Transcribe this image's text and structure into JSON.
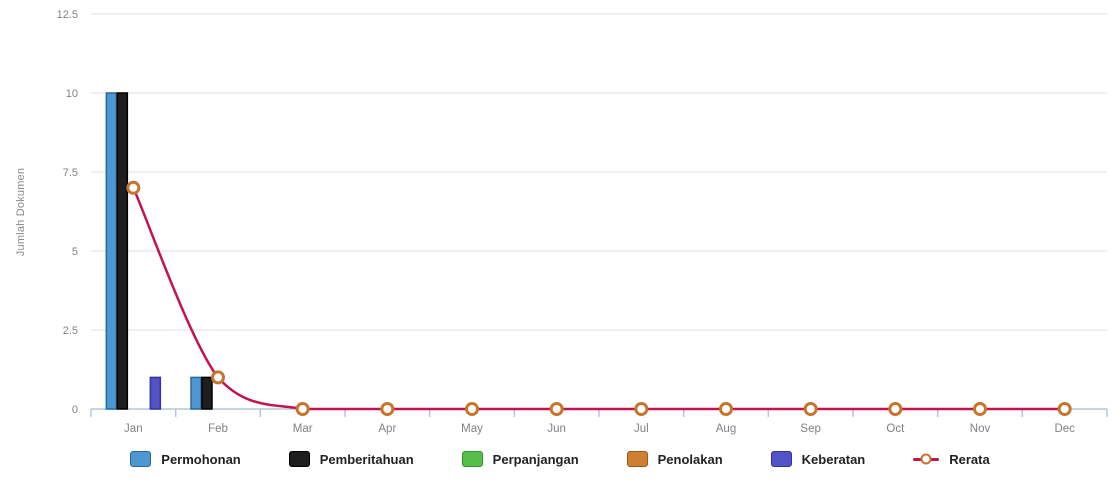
{
  "chart_data": {
    "type": "bar",
    "title": "",
    "categories": [
      "Jan",
      "Feb",
      "Mar",
      "Apr",
      "May",
      "Jun",
      "Jul",
      "Aug",
      "Sep",
      "Oct",
      "Nov",
      "Dec"
    ],
    "series": [
      {
        "name": "Permohonan",
        "kind": "bar",
        "color": "#4f97d2",
        "border_color": "#2a699c",
        "values": [
          10,
          1,
          0,
          0,
          0,
          0,
          0,
          0,
          0,
          0,
          0,
          0
        ]
      },
      {
        "name": "Pemberitahuan",
        "kind": "bar",
        "color": "#1e1e1e",
        "border_color": "#000000",
        "values": [
          10,
          1,
          0,
          0,
          0,
          0,
          0,
          0,
          0,
          0,
          0,
          0
        ]
      },
      {
        "name": "Perpanjangan",
        "kind": "bar",
        "color": "#56bf4b",
        "border_color": "#379230",
        "values": [
          0,
          0,
          0,
          0,
          0,
          0,
          0,
          0,
          0,
          0,
          0,
          0
        ]
      },
      {
        "name": "Penolakan",
        "kind": "bar",
        "color": "#cf7f31",
        "border_color": "#9c5a13",
        "values": [
          0,
          0,
          0,
          0,
          0,
          0,
          0,
          0,
          0,
          0,
          0,
          0
        ]
      },
      {
        "name": "Keberatan",
        "kind": "bar",
        "color": "#5153c6",
        "border_color": "#32349b",
        "values": [
          1,
          0,
          0,
          0,
          0,
          0,
          0,
          0,
          0,
          0,
          0,
          0
        ]
      },
      {
        "name": "Rerata",
        "kind": "line",
        "color": "#c3134f",
        "marker_border_color": "#c4762f",
        "marker_fill": "#ffffff",
        "values": [
          7,
          1,
          0,
          0,
          0,
          0,
          0,
          0,
          0,
          0,
          0,
          0
        ]
      }
    ],
    "xlabel": "",
    "ylabel": "Jumlah Dokumen",
    "yticks": [
      0,
      2.5,
      5,
      7.5,
      10,
      12.5
    ],
    "ylim": [
      0,
      12.5
    ],
    "grid": true,
    "legend_position": "bottom",
    "axis_color": "#b3c5da",
    "grid_color": "#ebebeb",
    "tick_label_color": "#828282"
  }
}
